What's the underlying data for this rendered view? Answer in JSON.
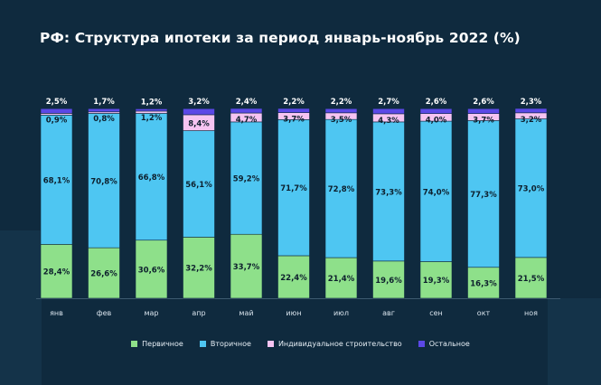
{
  "title": "РФ: Структура ипотеки за период январь-ноябрь 2022 (%)",
  "colors": {
    "background": "#0f2a3e",
    "primary": "#8ee08a",
    "secondary": "#4ec6f2",
    "individual": "#f6c4f2",
    "other": "#5b48e6",
    "text_dark": "#0d1f2d",
    "text_light": "#ffffff"
  },
  "legend": [
    {
      "label": "Первичное",
      "color": "#8ee08a"
    },
    {
      "label": "Вторичное",
      "color": "#4ec6f2"
    },
    {
      "label": "Индивидуальное строительство",
      "color": "#f6c4f2"
    },
    {
      "label": "Остальное",
      "color": "#5b48e6"
    }
  ],
  "chart_data": {
    "type": "bar",
    "stacked": true,
    "title": "РФ: Структура ипотеки за период январь-ноябрь 2022 (%)",
    "categories": [
      "янв",
      "фев",
      "мар",
      "апр",
      "май",
      "июн",
      "июл",
      "авг",
      "сен",
      "окт",
      "ноя"
    ],
    "series": [
      {
        "name": "Первичное",
        "values": [
          28.4,
          26.6,
          30.6,
          32.2,
          33.7,
          22.4,
          21.4,
          19.6,
          19.3,
          16.3,
          21.5
        ],
        "labels": [
          "28,4%",
          "26,6%",
          "30,6%",
          "32,2%",
          "33,7%",
          "22,4%",
          "21,4%",
          "19,6%",
          "19,3%",
          "16,3%",
          "21,5%"
        ]
      },
      {
        "name": "Вторичное",
        "values": [
          68.1,
          70.8,
          66.8,
          56.1,
          59.2,
          71.7,
          72.8,
          73.3,
          74.0,
          77.3,
          73.0
        ],
        "labels": [
          "68,1%",
          "70,8%",
          "66,8%",
          "56,1%",
          "59,2%",
          "71,7%",
          "72,8%",
          "73,3%",
          "74,0%",
          "77,3%",
          "73,0%"
        ]
      },
      {
        "name": "Индивидуальное строительство",
        "values": [
          0.9,
          0.8,
          1.2,
          8.4,
          4.7,
          3.7,
          3.5,
          4.3,
          4.0,
          3.7,
          3.2
        ],
        "labels": [
          "0,9%",
          "0,8%",
          "1,2%",
          "8,4%",
          "4,7%",
          "3,7%",
          "3,5%",
          "4,3%",
          "4,0%",
          "3,7%",
          "3,2%"
        ]
      },
      {
        "name": "Остальное",
        "values": [
          2.5,
          1.7,
          1.2,
          3.2,
          2.4,
          2.2,
          2.2,
          2.7,
          2.6,
          2.6,
          2.3
        ],
        "labels": [
          "2,5%",
          "1,7%",
          "1,2%",
          "3,2%",
          "2,4%",
          "2,2%",
          "2,2%",
          "2,7%",
          "2,6%",
          "2,6%",
          "2,3%"
        ]
      }
    ],
    "ylim": [
      0,
      100
    ],
    "grid": false,
    "legend_position": "bottom"
  }
}
